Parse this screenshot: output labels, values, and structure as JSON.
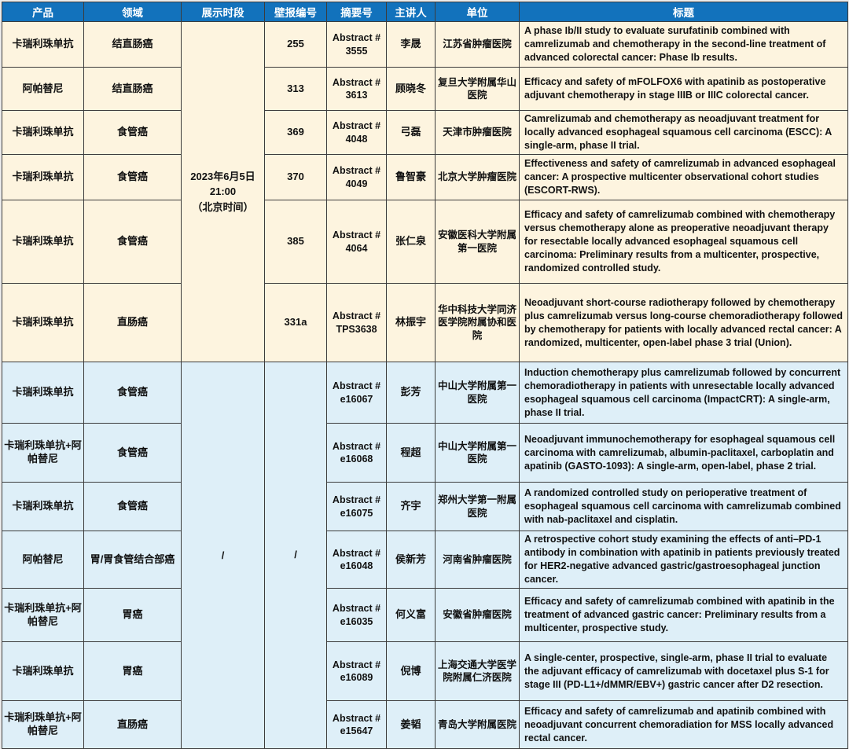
{
  "colors": {
    "header_bg": "#1272BC",
    "header_text": "#FFFFFF",
    "poster_section_bg": "#FDF4DF",
    "online_section_bg": "#DEEFF8",
    "border": "#3C3C3C"
  },
  "table": {
    "columns": [
      {
        "key": "product",
        "label": "产品"
      },
      {
        "key": "field",
        "label": "领域"
      },
      {
        "key": "period",
        "label": "展示时段"
      },
      {
        "key": "poster",
        "label": "壁报编号"
      },
      {
        "key": "abstract",
        "label": "摘要号"
      },
      {
        "key": "speaker",
        "label": "主讲人"
      },
      {
        "key": "institution",
        "label": "单位"
      },
      {
        "key": "title",
        "label": "标题"
      }
    ],
    "abstract_prefix": "Abstract #",
    "sections": [
      {
        "name": "poster-session",
        "display_period_lines": [
          "2023年6月5日",
          "21:00",
          "（北京时间）"
        ],
        "rows": [
          {
            "product": "卡瑞利珠单抗",
            "field": "结直肠癌",
            "poster_no": "255",
            "abstract_no": "3555",
            "speaker": "李晟",
            "institution": "江苏省肿瘤医院",
            "title": "A phase Ib/II study to evaluate surufatinib combined with camrelizumab and chemotherapy in the second-line treatment of advanced colorectal cancer: Phase Ib results."
          },
          {
            "product": "阿帕替尼",
            "field": "结直肠癌",
            "poster_no": "313",
            "abstract_no": "3613",
            "speaker": "顾晓冬",
            "institution": "复旦大学附属华山医院",
            "title": "Efficacy and safety of mFOLFOX6 with apatinib as postoperative adjuvant chemotherapy in stage IIIB or IIIC colorectal cancer."
          },
          {
            "product": "卡瑞利珠单抗",
            "field": "食管癌",
            "poster_no": "369",
            "abstract_no": "4048",
            "speaker": "弓磊",
            "institution": "天津市肿瘤医院",
            "title": "Camrelizumab and chemotherapy as neoadjuvant treatment for locally advanced esophageal squamous cell carcinoma (ESCC): A single-arm, phase II trial."
          },
          {
            "product": "卡瑞利珠单抗",
            "field": "食管癌",
            "poster_no": "370",
            "abstract_no": "4049",
            "speaker": "鲁智豪",
            "institution": "北京大学肿瘤医院",
            "title": "Effectiveness and safety of camrelizumab in advanced esophageal cancer: A prospective multicenter observational cohort studies (ESCORT-RWS)."
          },
          {
            "product": "卡瑞利珠单抗",
            "field": "食管癌",
            "poster_no": "385",
            "abstract_no": "4064",
            "speaker": "张仁泉",
            "institution": "安徽医科大学附属第一医院",
            "title": "Efficacy and safety of camrelizumab combined with chemotherapy versus chemotherapy alone as preoperative neoadjuvant therapy for resectable locally advanced esophageal squamous cell carcinoma: Preliminary results from a multicenter, prospective, randomized controlled study."
          },
          {
            "product": "卡瑞利珠单抗",
            "field": "直肠癌",
            "poster_no": "331a",
            "abstract_no": "TPS3638",
            "speaker": "林振宇",
            "institution": "华中科技大学同济医学院附属协和医院",
            "title": "Neoadjuvant short-course radiotherapy followed by chemotherapy plus camrelizumab versus long-course chemoradiotherapy followed by chemotherapy for patients with locally advanced rectal cancer: A randomized, multicenter, open-label phase 3 trial (Union)."
          }
        ]
      },
      {
        "name": "online-session",
        "display_period": "/",
        "poster_no": "/",
        "rows": [
          {
            "product": "卡瑞利珠单抗",
            "field": "食管癌",
            "abstract_no": "e16067",
            "speaker": "彭芳",
            "institution": "中山大学附属第一医院",
            "title": "Induction chemotherapy plus camrelizumab followed by concurrent chemoradiotherapy in patients with unresectable locally advanced esophageal squamous cell carcinoma (ImpactCRT): A single-arm, phase II trial."
          },
          {
            "product": "卡瑞利珠单抗+阿帕替尼",
            "field": "食管癌",
            "abstract_no": "e16068",
            "speaker": "程超",
            "institution": "中山大学附属第一医院",
            "title": "Neoadjuvant immunochemotherapy for esophageal squamous cell carcinoma with camrelizumab, albumin-paclitaxel, carboplatin and apatinib (GASTO-1093): A single-arm, open-label, phase 2 trial."
          },
          {
            "product": "卡瑞利珠单抗",
            "field": "食管癌",
            "abstract_no": "e16075",
            "speaker": "齐宇",
            "institution": "郑州大学第一附属医院",
            "title": "A randomized controlled study on perioperative treatment of esophageal squamous cell carcinoma with camrelizumab combined with nab-paclitaxel and cisplatin."
          },
          {
            "product": "阿帕替尼",
            "field": "胃/胃食管结合部癌",
            "abstract_no": "e16048",
            "speaker": "侯新芳",
            "institution": "河南省肿瘤医院",
            "title": "A retrospective cohort study examining the effects of anti–PD-1 antibody in combination with apatinib in patients previously treated for HER2-negative advanced gastric/gastroesophageal junction cancer."
          },
          {
            "product": "卡瑞利珠单抗+阿帕替尼",
            "field": "胃癌",
            "abstract_no": "e16035",
            "speaker": "何义富",
            "institution": "安徽省肿瘤医院",
            "title": "Efficacy and safety of camrelizumab combined with apatinib in the treatment of advanced gastric cancer: Preliminary results from a multicenter, prospective study."
          },
          {
            "product": "卡瑞利珠单抗",
            "field": "胃癌",
            "abstract_no": "e16089",
            "speaker": "倪博",
            "institution": "上海交通大学医学院附属仁济医院",
            "title": "A single-center, prospective, single-arm, phase II trial to evaluate the adjuvant efficacy of camrelizumab with docetaxel plus S-1 for stage III (PD-L1+/dMMR/EBV+) gastric cancer after D2 resection."
          },
          {
            "product": "卡瑞利珠单抗+阿帕替尼",
            "field": "直肠癌",
            "abstract_no": "e15647",
            "speaker": "姜韬",
            "institution": "青岛大学附属医院",
            "title": "Efficacy and safety of camrelizumab and apatinib combined with neoadjuvant concurrent chemoradiation for MSS locally advanced rectal cancer."
          }
        ]
      }
    ]
  }
}
